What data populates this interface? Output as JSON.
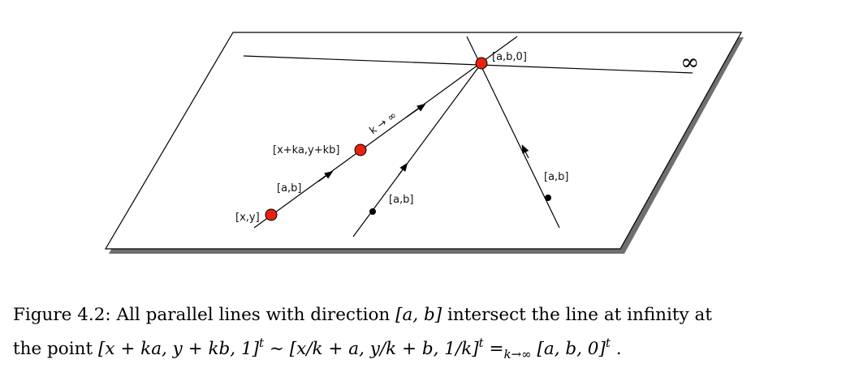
{
  "diagram": {
    "infinity_symbol": "∞",
    "labels": {
      "point_ab0": "[a,b,0]",
      "point_xy": "[x,y]",
      "point_moving": "[x+ka,y+kb]",
      "direction_1": "[a,b]",
      "direction_2": "[a,b]",
      "direction_3": "[a,b]",
      "k_limit": "k → ∞"
    },
    "colors": {
      "point_fill": "#e8220f",
      "line": "#000000",
      "plane_shadow": "#6f6f6f"
    }
  },
  "caption": {
    "line1_prefix": "Figure 4.2: All parallel lines with direction",
    "direction": "[a, b]",
    "line1_suffix": "intersect the line at infinity at",
    "line2_prefix": "the point",
    "expr1": "[x + ka, y + kb, 1]",
    "sup1": "t",
    "sim": "∼",
    "expr2": "[x/k + a, y/k + b, 1/k]",
    "sup2": "t",
    "eq": "=",
    "sub_limit": "k→∞",
    "expr3": "[a, b, 0]",
    "sup3": "t",
    "end": "."
  }
}
